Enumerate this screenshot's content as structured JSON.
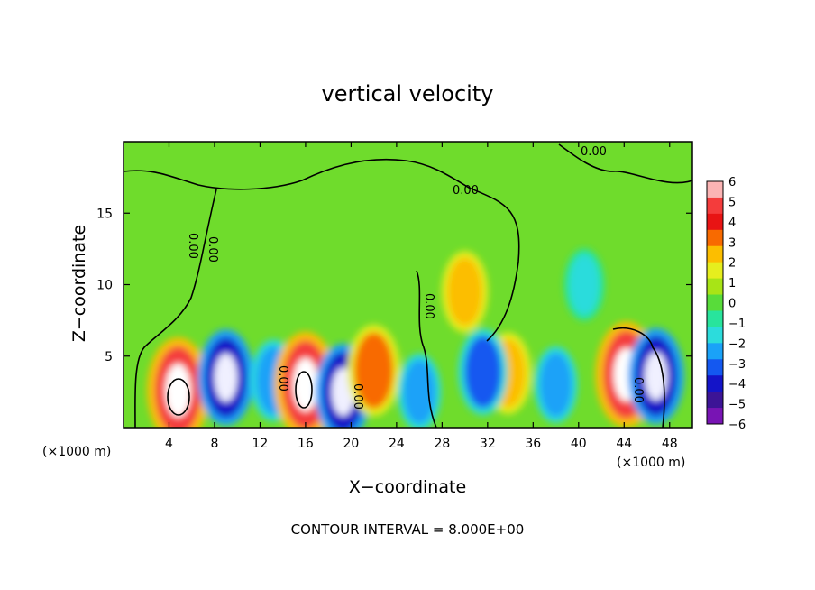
{
  "chart_data": {
    "type": "heatmap",
    "title": "vertical velocity",
    "xlabel": "X−coordinate",
    "ylabel": "Z−coordinate",
    "x_unit_left": "(×1000 m)",
    "x_unit_right": "(×1000 m)",
    "note": "CONTOUR INTERVAL = 8.000E+00",
    "xlim": [
      0,
      50
    ],
    "ylim": [
      0,
      20
    ],
    "x_ticks": [
      "4",
      "8",
      "12",
      "16",
      "20",
      "24",
      "28",
      "32",
      "36",
      "40",
      "44",
      "48"
    ],
    "x_tick_values": [
      4,
      8,
      12,
      16,
      20,
      24,
      28,
      32,
      36,
      40,
      44,
      48
    ],
    "y_ticks": [
      "5",
      "10",
      "15"
    ],
    "y_tick_values": [
      5,
      10,
      15
    ],
    "colorbar": {
      "min": -6,
      "max": 6,
      "labels": [
        "6",
        "5",
        "4",
        "3",
        "2",
        "1",
        "0",
        "−1",
        "−2",
        "−3",
        "−4",
        "−5",
        "−6"
      ],
      "colors": [
        "#fbb4b4",
        "#f43c3c",
        "#e81414",
        "#f86a00",
        "#fcbe00",
        "#e6ee1e",
        "#a8e416",
        "#58dc3a",
        "#28e49c",
        "#2cdcdc",
        "#1aa2f8",
        "#1458f0",
        "#1414c8",
        "#3c1496",
        "#7814b4"
      ]
    },
    "contour_labels": [
      "0.00",
      "0.00",
      "0.00",
      "0.00",
      "0.00",
      "0.00",
      "0.00",
      "0.00"
    ],
    "features": [
      {
        "x": 4.8,
        "z": 2.6,
        "value": 6.0
      },
      {
        "x": 9.0,
        "z": 3.5,
        "value": -5.0
      },
      {
        "x": 13.2,
        "z": 3.3,
        "value": -3.5
      },
      {
        "x": 16.0,
        "z": 3.0,
        "value": 6.0
      },
      {
        "x": 19.3,
        "z": 2.5,
        "value": -5.0
      },
      {
        "x": 22.0,
        "z": 4.0,
        "value": 4.5
      },
      {
        "x": 26.0,
        "z": 2.5,
        "value": -3.0
      },
      {
        "x": 30.0,
        "z": 9.5,
        "value": 3.5
      },
      {
        "x": 33.8,
        "z": 3.8,
        "value": 3.5
      },
      {
        "x": 31.6,
        "z": 3.9,
        "value": -4.0
      },
      {
        "x": 38.0,
        "z": 3.0,
        "value": -3.0
      },
      {
        "x": 40.5,
        "z": 10.0,
        "value": -2.5
      },
      {
        "x": 44.2,
        "z": 3.7,
        "value": 6.0
      },
      {
        "x": 46.8,
        "z": 3.6,
        "value": -5.0
      }
    ]
  }
}
